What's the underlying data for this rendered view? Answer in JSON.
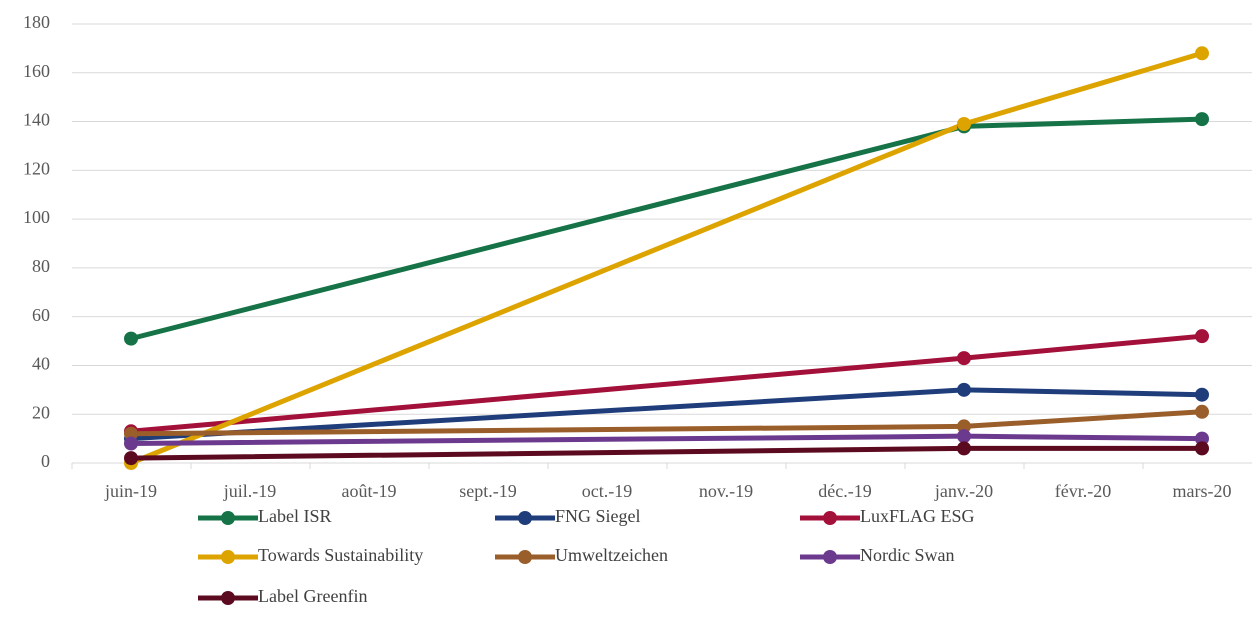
{
  "chart_data": {
    "type": "line",
    "categories": [
      "juin-19",
      "juil.-19",
      "août-19",
      "sept.-19",
      "oct.-19",
      "nov.-19",
      "déc.-19",
      "janv.-20",
      "févr.-20",
      "mars-20"
    ],
    "series": [
      {
        "name": "Label ISR",
        "color": "#157347",
        "values": [
          51,
          null,
          null,
          null,
          null,
          null,
          null,
          138,
          null,
          141
        ]
      },
      {
        "name": "FNG Siegel",
        "color": "#1f3d7a",
        "values": [
          10,
          null,
          null,
          null,
          null,
          null,
          null,
          30,
          null,
          28
        ]
      },
      {
        "name": "LuxFLAG ESG",
        "color": "#a3103a",
        "values": [
          13,
          null,
          null,
          null,
          null,
          null,
          null,
          43,
          null,
          52
        ]
      },
      {
        "name": "Towards Sustainability",
        "color": "#dda400",
        "values": [
          0,
          null,
          null,
          null,
          null,
          null,
          null,
          139,
          null,
          168
        ]
      },
      {
        "name": "Umweltzeichen",
        "color": "#9a5e2a",
        "values": [
          12,
          null,
          null,
          null,
          null,
          null,
          null,
          15,
          null,
          21
        ]
      },
      {
        "name": "Nordic Swan",
        "color": "#6b3a8e",
        "values": [
          8,
          null,
          null,
          null,
          null,
          null,
          null,
          11,
          null,
          10
        ]
      },
      {
        "name": "Label Greenfin",
        "color": "#5c0a1f",
        "values": [
          2,
          null,
          null,
          null,
          null,
          null,
          null,
          6,
          null,
          6
        ]
      }
    ],
    "ylim": [
      0,
      180
    ],
    "yticks": [
      0,
      20,
      40,
      60,
      80,
      100,
      120,
      140,
      160,
      180
    ],
    "grid": true,
    "connect_gaps": true
  }
}
